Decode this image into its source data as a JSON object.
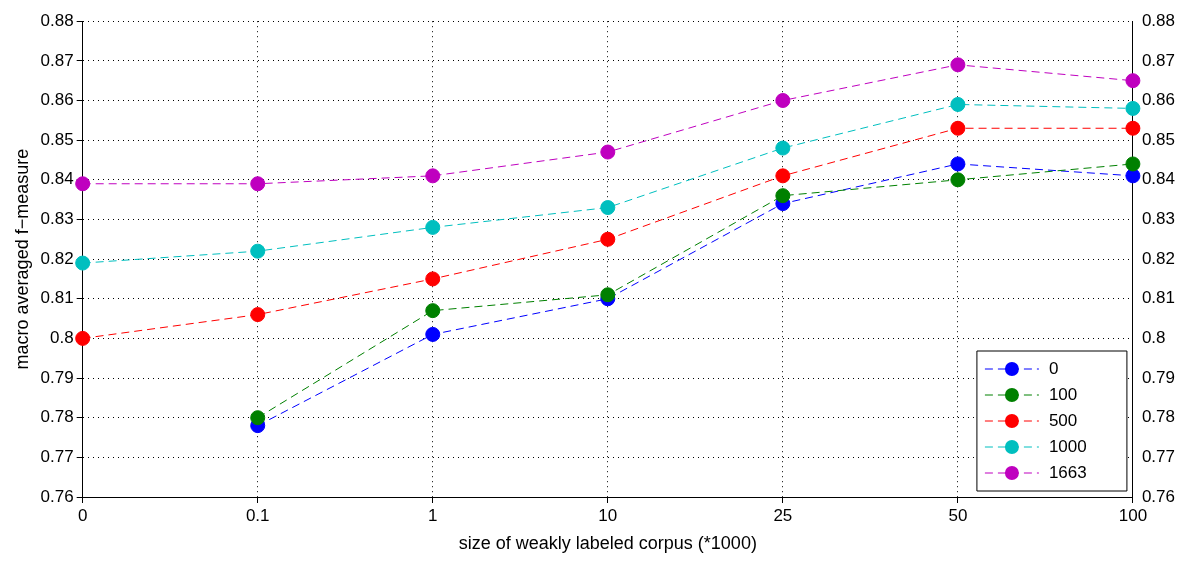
{
  "chart_data": {
    "type": "line",
    "xlabel": "size of weakly labeled corpus (*1000)",
    "ylabel": "macro averaged f−measure",
    "categories": [
      "0",
      "0.1",
      "1",
      "10",
      "25",
      "50",
      "100"
    ],
    "series": [
      {
        "name": "0",
        "color": "#0000ff",
        "values": [
          null,
          0.778,
          0.801,
          0.81,
          0.834,
          0.844,
          0.841
        ]
      },
      {
        "name": "100",
        "color": "#008000",
        "values": [
          null,
          0.78,
          0.807,
          0.811,
          0.836,
          0.84,
          0.844
        ]
      },
      {
        "name": "500",
        "color": "#ff0000",
        "values": [
          0.8,
          0.806,
          0.815,
          0.825,
          0.841,
          0.853,
          0.853
        ]
      },
      {
        "name": "1000",
        "color": "#00bfbf",
        "values": [
          0.819,
          0.822,
          0.828,
          0.833,
          0.848,
          0.859,
          0.858
        ]
      },
      {
        "name": "1663",
        "color": "#bf00bf",
        "values": [
          0.839,
          0.839,
          0.841,
          0.847,
          0.86,
          0.869,
          0.865
        ]
      }
    ],
    "ylim": [
      0.76,
      0.88
    ],
    "yticks": [
      0.76,
      0.77,
      0.78,
      0.79,
      0.8,
      0.81,
      0.82,
      0.83,
      0.84,
      0.85,
      0.86,
      0.87,
      0.88
    ],
    "y2lim": [
      0.76,
      0.88
    ],
    "y2ticks": [
      0.76,
      0.77,
      0.78,
      0.79,
      0.8,
      0.81,
      0.82,
      0.83,
      0.84,
      0.85,
      0.86,
      0.87,
      0.88
    ],
    "grid": true,
    "legend": "bottom right",
    "marker": "circle",
    "line_style": "dashed"
  }
}
